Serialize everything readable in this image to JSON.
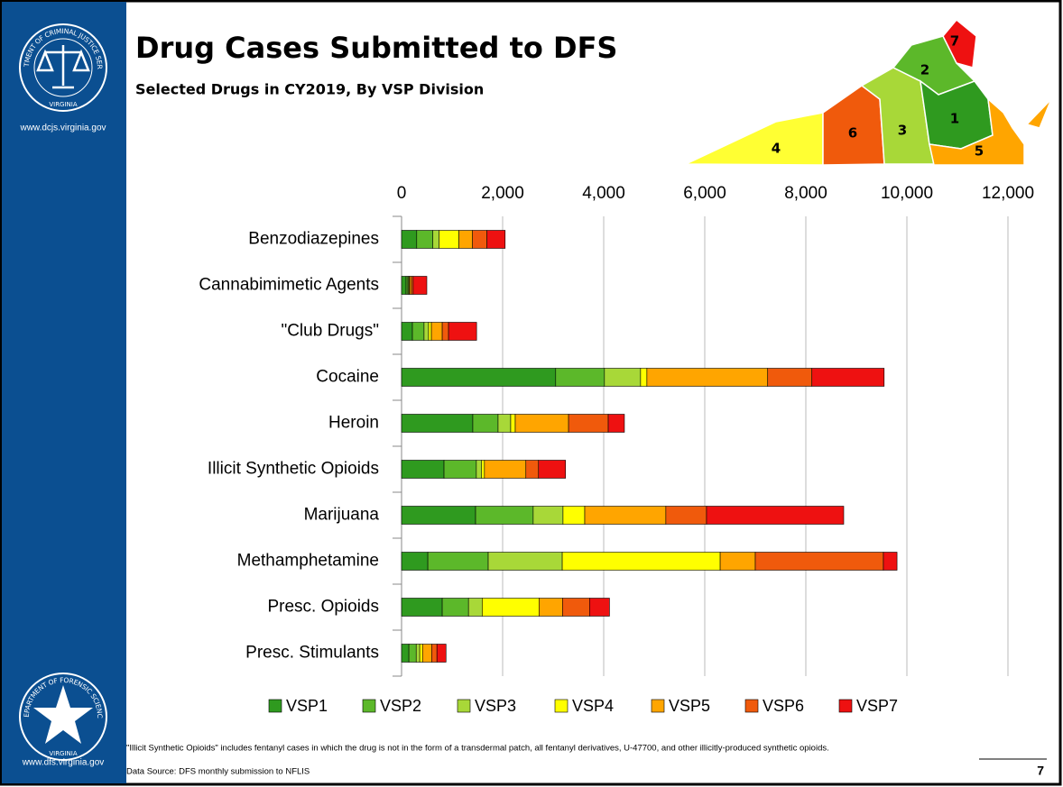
{
  "chart_data": {
    "type": "bar",
    "orientation": "horizontal",
    "stacked": true,
    "title": "Drug Cases Submitted to DFS",
    "subtitle": "Selected Drugs in CY2019, By VSP Division",
    "categories": [
      "Benzodiazepines",
      "Cannabimimetic Agents",
      "\"Club Drugs\"",
      "Cocaine",
      "Heroin",
      "Illicit Synthetic Opioids",
      "Marijuana",
      "Methamphetamine",
      "Presc. Opioids",
      "Presc. Stimulants"
    ],
    "series": [
      {
        "name": "VSP1",
        "color": "#2f9a1f",
        "values": [
          300,
          90,
          215,
          3050,
          1410,
          840,
          1465,
          520,
          805,
          145
        ]
      },
      {
        "name": "VSP2",
        "color": "#5cb82a",
        "values": [
          320,
          35,
          230,
          965,
          500,
          640,
          1140,
          1195,
          520,
          145
        ]
      },
      {
        "name": "VSP3",
        "color": "#a8d838",
        "values": [
          125,
          20,
          90,
          715,
          250,
          105,
          590,
          1465,
          270,
          70
        ]
      },
      {
        "name": "VSP4",
        "color": "#ffff00",
        "values": [
          390,
          15,
          55,
          125,
          90,
          55,
          430,
          3125,
          1125,
          55
        ]
      },
      {
        "name": "VSP5",
        "color": "#ffa500",
        "values": [
          270,
          35,
          215,
          2390,
          1055,
          820,
          1605,
          695,
          465,
          180
        ]
      },
      {
        "name": "VSP6",
        "color": "#f05a0c",
        "values": [
          285,
          35,
          125,
          875,
          785,
          250,
          805,
          2535,
          535,
          105
        ]
      },
      {
        "name": "VSP7",
        "color": "#ee1111",
        "values": [
          360,
          270,
          555,
          1430,
          320,
          535,
          2715,
          270,
          395,
          180
        ]
      }
    ],
    "xlim": [
      0,
      12000
    ],
    "xticks": [
      0,
      {
        "value": 2000,
        "label": "2,000"
      },
      {
        "value": 4000,
        "label": "4,000"
      },
      {
        "value": 6000,
        "label": "6,000"
      },
      {
        "value": 8000,
        "label": "8,000"
      },
      {
        "value": 10000,
        "label": "10,000"
      },
      {
        "value": 12000,
        "label": "12,000"
      }
    ],
    "grid": true,
    "legend": "bottom",
    "footnote": "\"Illicit Synthetic Opioids\" includes fentanyl cases in which the drug is not in the form of a transdermal patch, all fentanyl derivatives, U-47700, and other illicitly-produced synthetic opioids.",
    "source": "Data Source: DFS monthly submission to NFLIS",
    "page_number": "7"
  },
  "map": {
    "labels": [
      "1",
      "2",
      "3",
      "4",
      "5",
      "6",
      "7"
    ]
  },
  "logos": {
    "top_ring": "DEPARTMENT OF CRIMINAL JUSTICE SERVICES",
    "top_state": "VIRGINIA",
    "top_url": "www.dcjs.virginia.gov",
    "bottom_ring": "DEPARTMENT OF FORENSIC SCIENCE",
    "bottom_state": "VIRGINIA",
    "bottom_url": "www.dfs.virginia.gov"
  }
}
